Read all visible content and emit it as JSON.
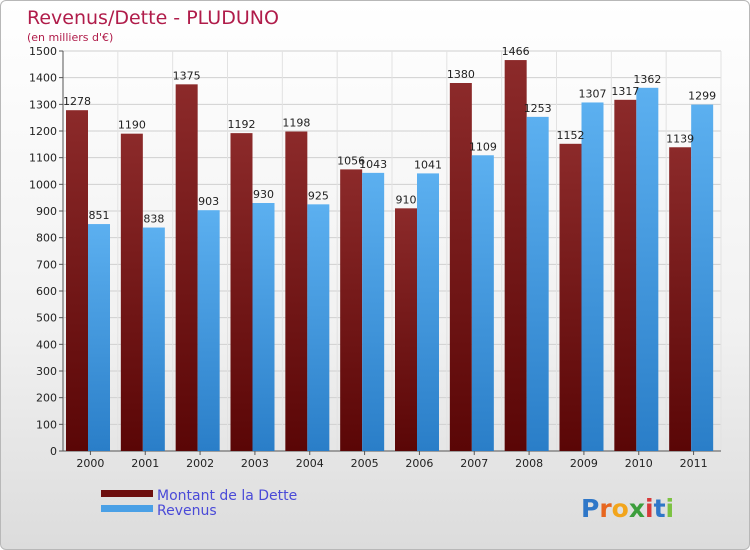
{
  "chart_data": {
    "type": "bar",
    "title": "Revenus/Dette - PLUDUNO",
    "subtitle": "(en milliers d'€)",
    "categories": [
      "2000",
      "2001",
      "2002",
      "2003",
      "2004",
      "2005",
      "2006",
      "2007",
      "2008",
      "2009",
      "2010",
      "2011"
    ],
    "series": [
      {
        "name": "Montant de la Dette",
        "color": "#7a1a1a",
        "values": [
          1278,
          1190,
          1375,
          1192,
          1198,
          1056,
          910,
          1380,
          1466,
          1152,
          1317,
          1139
        ]
      },
      {
        "name": "Revenus",
        "color": "#4aa0e6",
        "values": [
          851,
          838,
          903,
          930,
          925,
          1043,
          1041,
          1109,
          1253,
          1307,
          1362,
          1299
        ]
      }
    ],
    "ylim": [
      0,
      1500
    ],
    "yticks": [
      0,
      100,
      200,
      300,
      400,
      500,
      600,
      700,
      800,
      900,
      1000,
      1100,
      1200,
      1300,
      1400,
      1500
    ],
    "grid": true,
    "legend_position": "bottom-left"
  },
  "logo": {
    "letters": [
      "P",
      "r",
      "o",
      "x",
      "i",
      "t",
      "i"
    ],
    "colors": [
      "#2f77c8",
      "#e7661f",
      "#f2a51c",
      "#3c9e3c",
      "#d83a3a",
      "#2f77c8",
      "#7cc242"
    ]
  }
}
